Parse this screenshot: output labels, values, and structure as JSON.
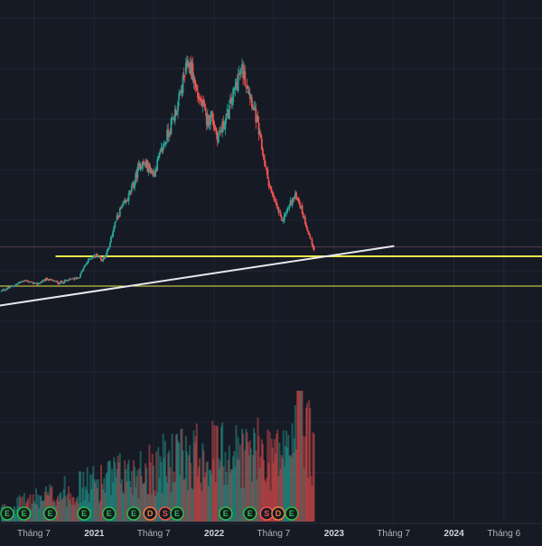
{
  "chart_data": {
    "type": "candlestick",
    "title": "",
    "x_axis": {
      "ticks": [
        {
          "label": "Tháng 7",
          "date": "2020-07-01",
          "bold": false
        },
        {
          "label": "2021",
          "date": "2021-01-01",
          "bold": true
        },
        {
          "label": "Tháng 7",
          "date": "2021-07-01",
          "bold": false
        },
        {
          "label": "2022",
          "date": "2022-01-01",
          "bold": true
        },
        {
          "label": "Tháng 7",
          "date": "2022-07-01",
          "bold": false
        },
        {
          "label": "2023",
          "date": "2023-01-01",
          "bold": true
        },
        {
          "label": "Tháng 7",
          "date": "2023-07-01",
          "bold": false
        },
        {
          "label": "2024",
          "date": "2024-01-01",
          "bold": true
        },
        {
          "label": "Tháng 6",
          "date": "2024-06-01",
          "bold": false
        }
      ],
      "range": [
        "2020-03-20",
        "2024-09-25"
      ]
    },
    "y_axis": {
      "range": [
        0,
        100
      ],
      "grid": true
    },
    "price_path": [
      [
        "2020-03-25",
        6.0
      ],
      [
        "2020-05-01",
        8.0
      ],
      [
        "2020-06-01",
        10.0
      ],
      [
        "2020-07-10",
        8.5
      ],
      [
        "2020-08-10",
        10.5
      ],
      [
        "2020-09-15",
        9.0
      ],
      [
        "2020-10-20",
        10.2
      ],
      [
        "2020-11-15",
        11.0
      ],
      [
        "2020-12-01",
        15.0
      ],
      [
        "2020-12-20",
        18.5
      ],
      [
        "2021-01-10",
        19.5
      ],
      [
        "2021-01-25",
        17.5
      ],
      [
        "2021-02-15",
        22.0
      ],
      [
        "2021-03-01",
        30.0
      ],
      [
        "2021-03-20",
        36.0
      ],
      [
        "2021-04-10",
        40.0
      ],
      [
        "2021-05-01",
        46.0
      ],
      [
        "2021-05-20",
        54.0
      ],
      [
        "2021-06-10",
        53.0
      ],
      [
        "2021-07-01",
        50.0
      ],
      [
        "2021-07-20",
        57.0
      ],
      [
        "2021-08-10",
        64.0
      ],
      [
        "2021-08-30",
        71.0
      ],
      [
        "2021-09-15",
        77.0
      ],
      [
        "2021-10-01",
        86.0
      ],
      [
        "2021-10-15",
        92.0
      ],
      [
        "2021-10-25",
        89.0
      ],
      [
        "2021-11-10",
        80.0
      ],
      [
        "2021-11-25",
        76.0
      ],
      [
        "2021-12-10",
        70.0
      ],
      [
        "2021-12-25",
        72.0
      ],
      [
        "2022-01-10",
        64.0
      ],
      [
        "2022-01-25",
        67.0
      ],
      [
        "2022-02-10",
        72.0
      ],
      [
        "2022-03-01",
        80.0
      ],
      [
        "2022-03-15",
        86.0
      ],
      [
        "2022-03-28",
        89.0
      ],
      [
        "2022-04-10",
        84.0
      ],
      [
        "2022-04-25",
        78.0
      ],
      [
        "2022-05-10",
        70.0
      ],
      [
        "2022-05-25",
        60.0
      ],
      [
        "2022-06-10",
        50.0
      ],
      [
        "2022-06-25",
        42.0
      ],
      [
        "2022-07-10",
        38.0
      ],
      [
        "2022-07-25",
        32.0
      ],
      [
        "2022-08-10",
        36.0
      ],
      [
        "2022-08-25",
        40.0
      ],
      [
        "2022-09-10",
        42.0
      ],
      [
        "2022-09-25",
        36.0
      ],
      [
        "2022-10-10",
        30.0
      ],
      [
        "2022-10-22",
        25.0
      ],
      [
        "2022-11-01",
        22.0
      ]
    ],
    "horizontal_lines": [
      {
        "value": 22.5,
        "color": "#5b3a4a",
        "width": 1,
        "from": "2020-03-20",
        "to": "2024-09-25"
      },
      {
        "value": 19.0,
        "color": "#e8e84a",
        "width": 2,
        "from": "2020-09-05",
        "to": "2024-09-25"
      },
      {
        "value": 7.8,
        "color": "#e8e84a",
        "width": 1,
        "from": "2020-03-20",
        "to": "2024-09-25"
      }
    ],
    "trendline": {
      "from": [
        "2020-03-20",
        0.5
      ],
      "to": [
        "2023-07-01",
        22.8
      ],
      "color": "#e8e8ee",
      "width": 2
    },
    "volume_peak_date": "2022-09-20",
    "event_markers": [
      {
        "date": "2020-03-25",
        "label": "E",
        "type": "earnings"
      },
      {
        "date": "2020-06-01",
        "label": "E",
        "type": "earnings"
      },
      {
        "date": "2020-08-20",
        "label": "E",
        "type": "earnings"
      },
      {
        "date": "2020-12-01",
        "label": "E",
        "type": "earnings"
      },
      {
        "date": "2021-02-15",
        "label": "E",
        "type": "earnings"
      },
      {
        "date": "2021-05-01",
        "label": "E",
        "type": "earnings"
      },
      {
        "date": "2021-06-20",
        "label": "D",
        "type": "dividend"
      },
      {
        "date": "2021-08-05",
        "label": "S",
        "type": "split"
      },
      {
        "date": "2021-09-10",
        "label": "E",
        "type": "earnings"
      },
      {
        "date": "2022-02-05",
        "label": "E",
        "type": "earnings"
      },
      {
        "date": "2022-04-20",
        "label": "E",
        "type": "earnings"
      },
      {
        "date": "2022-06-10",
        "label": "S",
        "type": "split"
      },
      {
        "date": "2022-07-15",
        "label": "D",
        "type": "dividend"
      },
      {
        "date": "2022-08-25",
        "label": "E",
        "type": "earnings"
      }
    ],
    "colors": {
      "background": "#161a25",
      "grid": "#232632",
      "up": "#26a69a",
      "down": "#ef5350",
      "earnings": "#2ebd49",
      "dividend": "#f57c3f",
      "split": "#ef5350"
    }
  }
}
